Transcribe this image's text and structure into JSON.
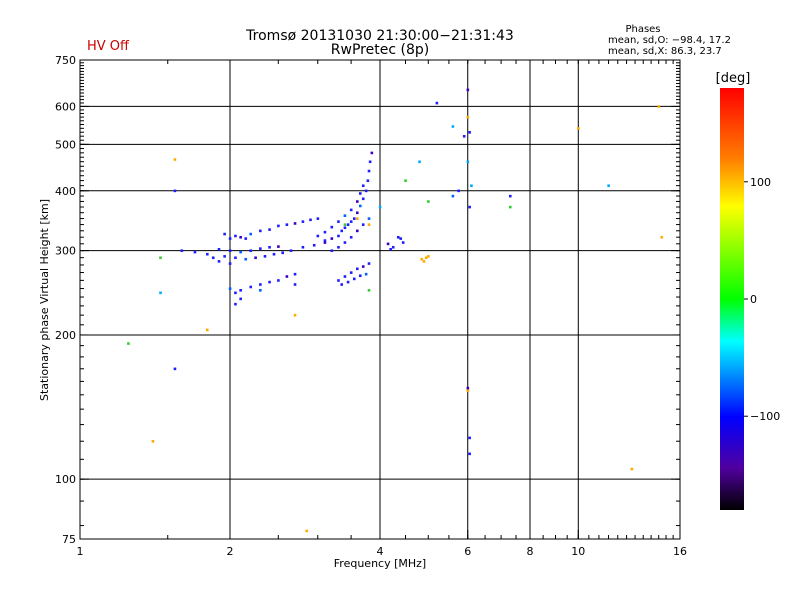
{
  "header": {
    "status": "HV Off",
    "title": "Tromsø 20131030 21:30:00−21:31:43",
    "subtitle": "RwPretec (8p)",
    "stats_title": "Phases",
    "stats_o": "mean, sd,O: −98.4, 17.2",
    "stats_x": "mean, sd,X:  86.3, 23.7"
  },
  "colors": {
    "status": "#cc0000",
    "text": "#000000",
    "grid": "#000000"
  },
  "chart_data": {
    "type": "scatter",
    "xlabel": "Frequency [MHz]",
    "ylabel": "Stationary phase Virtual Height [km]",
    "xscale": "log",
    "yscale": "log",
    "xlim": [
      1,
      16
    ],
    "ylim": [
      75,
      750
    ],
    "xticks": [
      1,
      2,
      4,
      6,
      8,
      10,
      16
    ],
    "xtick_labels": [
      "1",
      "2",
      "4",
      "6",
      "8",
      "10",
      "16"
    ],
    "x_gridlines": [
      2,
      4,
      6,
      8,
      10
    ],
    "yticks": [
      75,
      100,
      200,
      300,
      400,
      500,
      600,
      750
    ],
    "ytick_labels": [
      "75",
      "100",
      "200",
      "300",
      "400",
      "500",
      "600",
      "750"
    ],
    "y_gridlines": [
      100,
      200,
      300,
      400,
      500,
      600
    ],
    "colorbar": {
      "label": "[deg]",
      "range": [
        -180,
        180
      ],
      "ticks": [
        100,
        0,
        -100
      ],
      "tick_labels": [
        "100",
        "0",
        "−100"
      ]
    },
    "series": [
      {
        "values": [
          [
            1.95,
            325
          ],
          [
            2.0,
            318
          ],
          [
            2.05,
            322
          ],
          [
            2.1,
            320
          ],
          [
            2.15,
            318
          ],
          [
            2.2,
            325
          ],
          [
            2.3,
            330
          ],
          [
            2.4,
            332
          ],
          [
            2.5,
            338
          ],
          [
            2.6,
            340
          ],
          [
            2.7,
            342
          ],
          [
            2.8,
            345
          ],
          [
            2.9,
            348
          ],
          [
            3.0,
            350
          ],
          [
            1.95,
            292
          ],
          [
            2.05,
            290
          ],
          [
            2.15,
            288
          ],
          [
            2.25,
            290
          ],
          [
            2.35,
            292
          ],
          [
            2.45,
            295
          ],
          [
            2.55,
            297
          ],
          [
            2.65,
            300
          ],
          [
            2.8,
            305
          ],
          [
            2.95,
            308
          ],
          [
            3.1,
            312
          ],
          [
            1.9,
            302
          ],
          [
            2.0,
            300
          ],
          [
            2.1,
            298
          ],
          [
            2.2,
            300
          ],
          [
            2.3,
            303
          ],
          [
            2.4,
            305
          ],
          [
            2.5,
            306
          ],
          [
            1.6,
            300
          ],
          [
            1.7,
            298
          ],
          [
            1.8,
            295
          ],
          [
            1.85,
            290
          ],
          [
            1.9,
            285
          ],
          [
            2.0,
            282
          ],
          [
            2.0,
            250
          ],
          [
            2.05,
            245
          ],
          [
            2.1,
            248
          ],
          [
            2.2,
            252
          ],
          [
            2.3,
            255
          ],
          [
            2.4,
            258
          ],
          [
            2.5,
            260
          ],
          [
            2.6,
            265
          ],
          [
            2.7,
            268
          ],
          [
            2.05,
            232
          ],
          [
            2.1,
            238
          ],
          [
            2.3,
            248
          ],
          [
            2.7,
            255
          ],
          [
            3.1,
            315
          ],
          [
            3.2,
            318
          ],
          [
            3.3,
            322
          ],
          [
            3.35,
            330
          ],
          [
            3.4,
            335
          ],
          [
            3.45,
            340
          ],
          [
            3.5,
            345
          ],
          [
            3.55,
            350
          ],
          [
            3.6,
            360
          ],
          [
            3.65,
            372
          ],
          [
            3.7,
            385
          ],
          [
            3.75,
            400
          ],
          [
            3.78,
            420
          ],
          [
            3.8,
            440
          ],
          [
            3.82,
            460
          ],
          [
            3.85,
            480
          ],
          [
            3.0,
            322
          ],
          [
            3.1,
            328
          ],
          [
            3.2,
            336
          ],
          [
            3.3,
            345
          ],
          [
            3.4,
            355
          ],
          [
            3.5,
            365
          ],
          [
            3.6,
            380
          ],
          [
            3.65,
            395
          ],
          [
            3.7,
            410
          ],
          [
            3.2,
            300
          ],
          [
            3.3,
            305
          ],
          [
            3.4,
            312
          ],
          [
            3.5,
            320
          ],
          [
            3.6,
            330
          ],
          [
            3.7,
            340
          ],
          [
            3.8,
            350
          ],
          [
            3.3,
            260
          ],
          [
            3.4,
            265
          ],
          [
            3.5,
            270
          ],
          [
            3.6,
            275
          ],
          [
            3.7,
            278
          ],
          [
            3.8,
            282
          ],
          [
            3.35,
            255
          ],
          [
            3.45,
            258
          ],
          [
            3.55,
            262
          ],
          [
            3.65,
            266
          ],
          [
            3.75,
            268
          ],
          [
            4.15,
            310
          ],
          [
            4.2,
            302
          ],
          [
            4.25,
            305
          ],
          [
            4.35,
            320
          ],
          [
            4.4,
            318
          ],
          [
            4.45,
            312
          ],
          [
            5.2,
            610
          ],
          [
            6.0,
            650
          ],
          [
            6.05,
            530
          ],
          [
            5.9,
            520
          ],
          [
            5.6,
            390
          ],
          [
            5.75,
            400
          ],
          [
            6.05,
            370
          ],
          [
            7.3,
            390
          ],
          [
            6.0,
            155
          ],
          [
            6.05,
            122
          ],
          [
            6.05,
            113
          ],
          [
            1.55,
            170
          ],
          [
            1.55,
            400
          ]
        ]
      },
      {
        "values": [
          [
            1.55,
            465
          ],
          [
            1.4,
            120
          ],
          [
            6.0,
            570
          ],
          [
            6.0,
            153
          ],
          [
            10.0,
            540
          ],
          [
            4.95,
            290
          ],
          [
            4.9,
            285
          ],
          [
            5.0,
            292
          ],
          [
            4.85,
            288
          ],
          [
            12.8,
            105
          ],
          [
            14.5,
            600
          ],
          [
            14.7,
            320
          ],
          [
            2.7,
            220
          ],
          [
            2.85,
            78
          ],
          [
            1.8,
            205
          ],
          [
            3.6,
            350
          ],
          [
            3.8,
            340
          ]
        ]
      },
      {
        "values": [
          [
            1.25,
            192
          ],
          [
            1.45,
            290
          ],
          [
            4.5,
            420
          ],
          [
            5.0,
            380
          ],
          [
            7.3,
            370
          ],
          [
            3.8,
            248
          ],
          [
            3.4,
            340
          ]
        ]
      },
      {
        "values": [
          [
            1.45,
            245
          ],
          [
            4.8,
            460
          ],
          [
            6.1,
            410
          ],
          [
            6.0,
            460
          ],
          [
            11.5,
            410
          ],
          [
            4.0,
            370
          ],
          [
            5.6,
            545
          ]
        ]
      }
    ]
  }
}
